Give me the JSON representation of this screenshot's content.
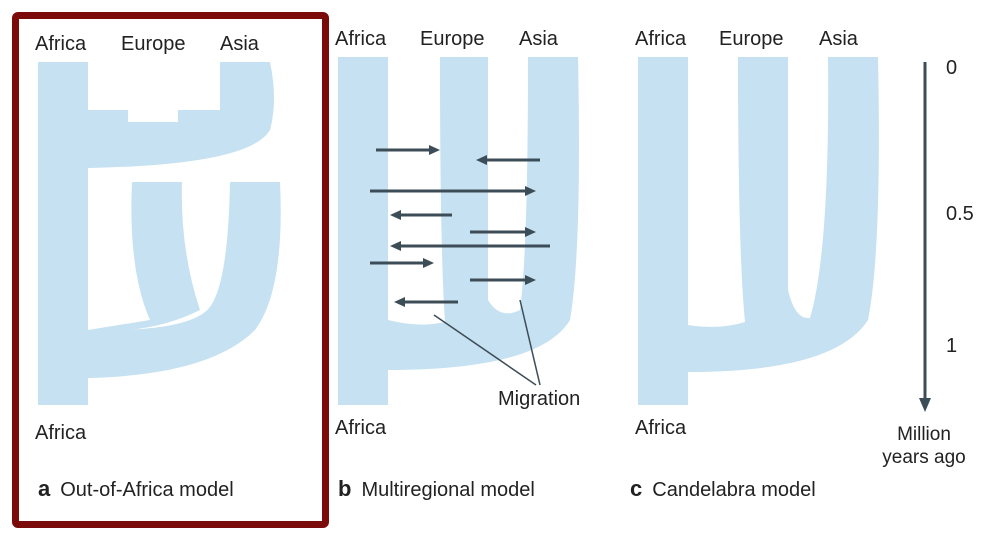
{
  "colors": {
    "branch": "#c6e1f1",
    "arrow": "#3d4d57",
    "frame": "#7b0b0b"
  },
  "panels": {
    "a": {
      "top_labels": [
        "Africa",
        "Europe",
        "Asia"
      ],
      "bottom_label": "Africa",
      "letter": "a",
      "title": "Out-of-Africa model"
    },
    "b": {
      "top_labels": [
        "Africa",
        "Europe",
        "Asia"
      ],
      "bottom_label": "Africa",
      "letter": "b",
      "title": "Multiregional model",
      "annotation": "Migration"
    },
    "c": {
      "top_labels": [
        "Africa",
        "Europe",
        "Asia"
      ],
      "bottom_label": "Africa",
      "letter": "c",
      "title": "Candelabra model"
    }
  },
  "time_axis": {
    "ticks": [
      "0",
      "0.5",
      "1"
    ],
    "title_line1": "Million",
    "title_line2": "years ago"
  }
}
